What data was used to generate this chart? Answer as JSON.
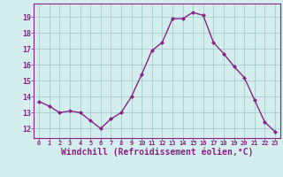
{
  "x": [
    0,
    1,
    2,
    3,
    4,
    5,
    6,
    7,
    8,
    9,
    10,
    11,
    12,
    13,
    14,
    15,
    16,
    17,
    18,
    19,
    20,
    21,
    22,
    23
  ],
  "y": [
    13.7,
    13.4,
    13.0,
    13.1,
    13.0,
    12.5,
    12.0,
    12.6,
    13.0,
    14.0,
    15.4,
    16.9,
    17.4,
    18.9,
    18.9,
    19.3,
    19.1,
    17.4,
    16.7,
    15.9,
    15.2,
    13.8,
    12.4,
    11.8
  ],
  "line_color": "#882288",
  "marker": "D",
  "marker_size": 2.0,
  "linewidth": 1.0,
  "bg_color": "#d4eeed",
  "grid_color": "#aacccc",
  "axis_color": "#882288",
  "tick_color": "#882288",
  "xlabel": "Windchill (Refroidissement éolien,°C)",
  "xlabel_fontsize": 7.0,
  "ylabel_ticks": [
    12,
    13,
    14,
    15,
    16,
    17,
    18,
    19
  ],
  "ylim": [
    11.4,
    19.85
  ],
  "xlim": [
    -0.5,
    23.5
  ],
  "xticks": [
    0,
    1,
    2,
    3,
    4,
    5,
    6,
    7,
    8,
    9,
    10,
    11,
    12,
    13,
    14,
    15,
    16,
    17,
    18,
    19,
    20,
    21,
    22,
    23
  ]
}
